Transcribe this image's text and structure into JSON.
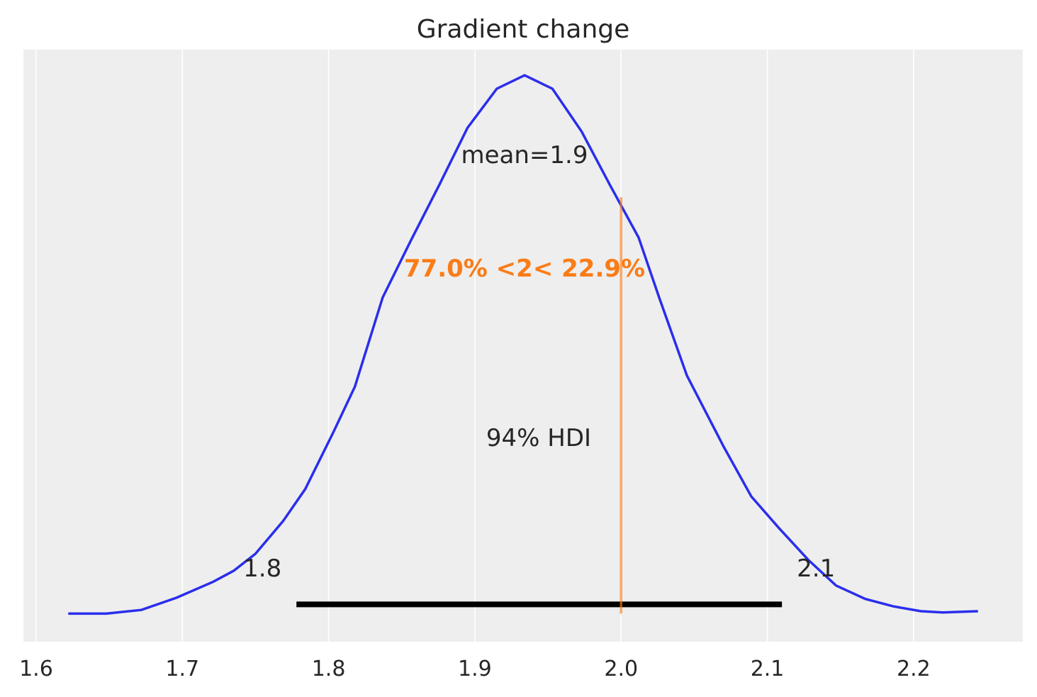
{
  "chart_data": {
    "type": "line",
    "title": "Gradient change",
    "xlabel": "",
    "ylabel": "",
    "xlim": [
      1.5913,
      2.2747
    ],
    "ylim": [
      -0.23,
      4.62
    ],
    "xticks": [
      "1.6",
      "1.7",
      "1.8",
      "1.9",
      "2.0",
      "2.1",
      "2.2"
    ],
    "grid": true,
    "colors": {
      "background": "#eeeeee",
      "grid": "#ffffff",
      "density": "#2a2eec",
      "reference": "#fa7c17",
      "hdi": "#000000"
    },
    "series": [
      {
        "x": [
          1.622,
          1.648,
          1.672,
          1.696,
          1.721,
          1.735,
          1.75,
          1.769,
          1.784,
          1.803,
          1.818,
          1.837,
          1.856,
          1.876,
          1.895,
          1.915,
          1.934,
          1.953,
          1.973,
          1.992,
          2.012,
          2.026,
          2.045,
          2.07,
          2.089,
          2.108,
          2.128,
          2.147,
          2.167,
          2.186,
          2.205,
          2.22,
          2.244
        ],
        "y": [
          0,
          0,
          0.03,
          0.13,
          0.26,
          0.35,
          0.49,
          0.76,
          1.02,
          1.48,
          1.86,
          2.59,
          3.05,
          3.52,
          3.98,
          4.3,
          4.41,
          4.3,
          3.95,
          3.52,
          3.08,
          2.59,
          1.95,
          1.37,
          0.96,
          0.7,
          0.44,
          0.23,
          0.12,
          0.06,
          0.02,
          0.01,
          0.02
        ]
      }
    ],
    "hdi": {
      "low": 1.778,
      "high": 2.11,
      "low_label": "1.8",
      "high_label": "2.1",
      "label": "94% HDI"
    },
    "mean_label": "mean=1.9",
    "reference": {
      "value": 2.0,
      "label": "77.0% <2< 22.9%"
    }
  }
}
